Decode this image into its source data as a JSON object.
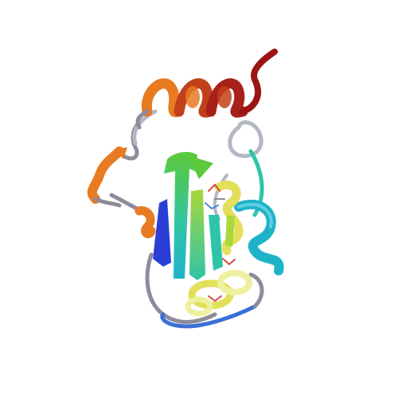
{
  "image": {
    "subject": "protein-ribbon-cartoon",
    "background": "#ffffff"
  },
  "colors": {
    "n_terminus_blue": "#2b3fd6",
    "blue": "#3b6fd8",
    "cyan": "#1fb3c9",
    "teal": "#2ec4a8",
    "green": "#5cc93a",
    "lime": "#a8d83a",
    "yellow": "#e2e05a",
    "pale_yellow": "#eef0a0",
    "orange": "#e87a22",
    "dark_orange": "#d35a12",
    "red_orange": "#c2401a",
    "dark_red": "#9a1414",
    "coil_gray": "#8c8c9a",
    "coil_gray_light": "#b4b8c4"
  }
}
